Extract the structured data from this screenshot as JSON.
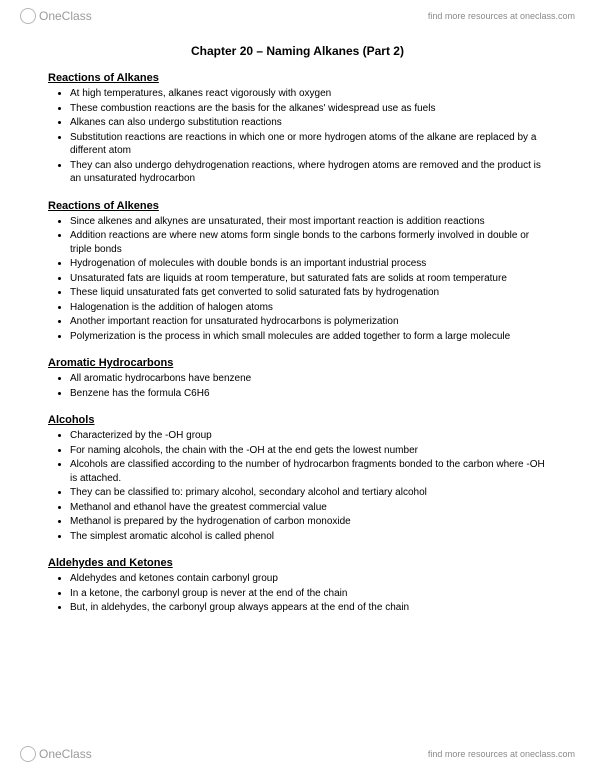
{
  "brand": {
    "name": "OneClass",
    "tagline": "find more resources at oneclass.com"
  },
  "doc": {
    "title": "Chapter 20 – Naming Alkanes (Part 2)",
    "sections": [
      {
        "heading": "Reactions of Alkanes",
        "items": [
          "At high temperatures, alkanes react vigorously with oxygen",
          "These combustion reactions are the basis for the alkanes' widespread use as fuels",
          "Alkanes can also undergo substitution reactions",
          "Substitution reactions are reactions in which one or more hydrogen atoms of the alkane are replaced by a different atom",
          "They can also undergo dehydrogenation reactions, where hydrogen atoms are removed and the product is an unsaturated hydrocarbon"
        ]
      },
      {
        "heading": "Reactions of Alkenes",
        "items": [
          "Since alkenes and alkynes are unsaturated, their most important reaction is addition reactions",
          "Addition reactions are where new atoms form single bonds to the carbons formerly involved in double or triple bonds",
          "Hydrogenation of molecules with double bonds is an important industrial process",
          "Unsaturated fats are liquids at room temperature, but saturated fats are solids at room temperature",
          "These liquid unsaturated fats get converted to solid saturated fats by hydrogenation",
          "Halogenation is the addition of halogen atoms",
          "Another important reaction for unsaturated hydrocarbons is polymerization",
          "Polymerization is the process in which small molecules are added together to form a large molecule"
        ]
      },
      {
        "heading": "Aromatic Hydrocarbons",
        "items": [
          "All aromatic hydrocarbons have benzene",
          "Benzene has the formula C6H6"
        ]
      },
      {
        "heading": "Alcohols",
        "items": [
          "Characterized by the -OH group",
          "For naming alcohols, the chain with the -OH at the end gets the lowest number",
          "Alcohols are classified according to the number of hydrocarbon fragments bonded to the carbon where -OH is attached.",
          "They can be classified to: primary alcohol, secondary alcohol and tertiary alcohol",
          "Methanol and ethanol have the greatest commercial value",
          "Methanol is prepared by the hydrogenation of carbon monoxide",
          "The simplest aromatic alcohol is called phenol"
        ]
      },
      {
        "heading": "Aldehydes and Ketones",
        "items": [
          "Aldehydes and ketones contain carbonyl group",
          "In a ketone, the carbonyl group is never at the end of the chain",
          "But, in aldehydes, the carbonyl group always appears at the end of the chain"
        ]
      }
    ]
  }
}
